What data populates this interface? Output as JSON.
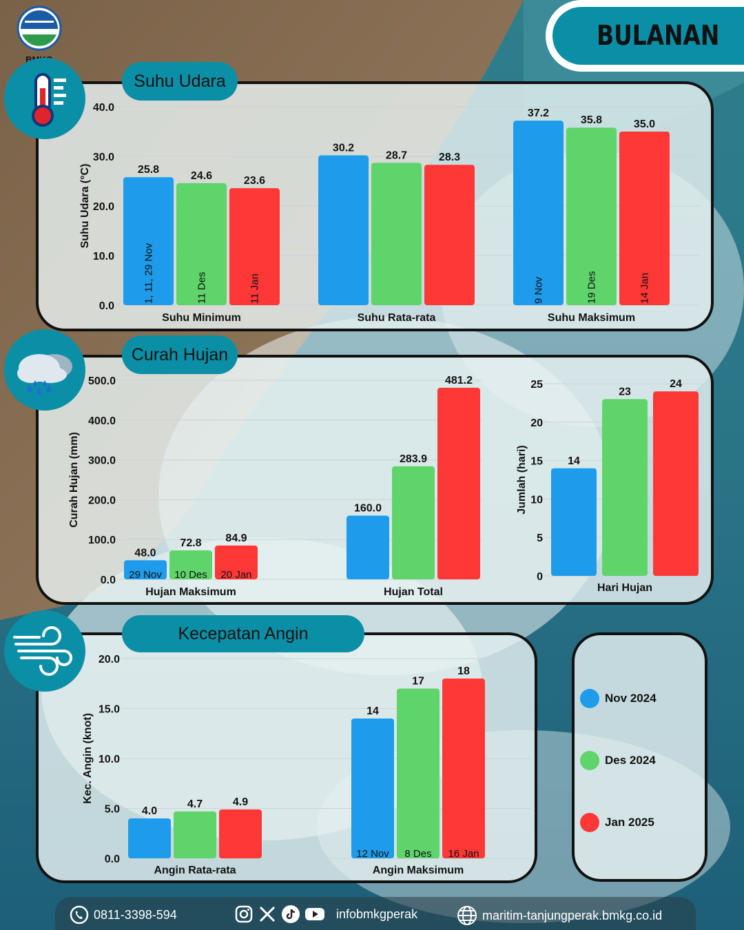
{
  "header": {
    "logo_text": "BMKG",
    "period": "BULANAN"
  },
  "legend": {
    "items": [
      {
        "label": "Nov 2024",
        "color": "#1e9ceb"
      },
      {
        "label": "Des 2024",
        "color": "#5fd46a"
      },
      {
        "label": "Jan 2025",
        "color": "#fe3737"
      }
    ]
  },
  "sections": {
    "suhu": {
      "title": "Suhu Udara",
      "icon": "thermometer-icon"
    },
    "hujan": {
      "title": "Curah Hujan",
      "icon": "rain-cloud-icon"
    },
    "angin": {
      "title": "Kecepatan Angin",
      "icon": "wind-icon"
    }
  },
  "chart_data": [
    {
      "id": "suhu",
      "type": "bar",
      "ylabel": "Suhu Udara (°C)",
      "ylim": [
        0,
        40
      ],
      "yticks": [
        "0.0",
        "10.0",
        "20.0",
        "30.0",
        "40.0"
      ],
      "categories": [
        "Suhu Minimum",
        "Suhu Rata-rata",
        "Suhu Maksimum"
      ],
      "series": [
        {
          "name": "Nov 2024",
          "values": [
            25.8,
            30.2,
            37.2
          ],
          "labels": [
            "25.8",
            "30.2",
            "37.2"
          ],
          "dates": [
            "1, 11, 29 Nov",
            "",
            "9 Nov"
          ]
        },
        {
          "name": "Des 2024",
          "values": [
            24.6,
            28.7,
            35.8
          ],
          "labels": [
            "24.6",
            "28.7",
            "35.8"
          ],
          "dates": [
            "11 Des",
            "",
            "19 Des"
          ]
        },
        {
          "name": "Jan 2025",
          "values": [
            23.6,
            28.3,
            35.0
          ],
          "labels": [
            "23.6",
            "28.3",
            "35.0"
          ],
          "dates": [
            "11 Jan",
            "",
            "14 Jan"
          ]
        }
      ]
    },
    {
      "id": "hujan",
      "type": "bar",
      "ylabel": "Curah Hujan (mm)",
      "ylim": [
        0,
        500
      ],
      "yticks": [
        "0.0",
        "100.0",
        "200.0",
        "300.0",
        "400.0",
        "500.0"
      ],
      "categories": [
        "Hujan Maksimum",
        "Hujan Total"
      ],
      "series": [
        {
          "name": "Nov 2024",
          "values": [
            48.0,
            160.0
          ],
          "labels": [
            "48.0",
            "160.0"
          ],
          "dates": [
            "29 Nov",
            ""
          ]
        },
        {
          "name": "Des 2024",
          "values": [
            72.8,
            283.9
          ],
          "labels": [
            "72.8",
            "283.9"
          ],
          "dates": [
            "10 Des",
            ""
          ]
        },
        {
          "name": "Jan 2025",
          "values": [
            84.9,
            481.2
          ],
          "labels": [
            "84.9",
            "481.2"
          ],
          "dates": [
            "20 Jan",
            ""
          ]
        }
      ]
    },
    {
      "id": "harihujan",
      "type": "bar",
      "ylabel": "Jumlah (hari)",
      "ylim": [
        0,
        25
      ],
      "yticks": [
        "0",
        "5",
        "10",
        "15",
        "20",
        "25"
      ],
      "categories": [
        "Hari Hujan"
      ],
      "series": [
        {
          "name": "Nov 2024",
          "values": [
            14
          ],
          "labels": [
            "14"
          ],
          "dates": [
            ""
          ]
        },
        {
          "name": "Des 2024",
          "values": [
            23
          ],
          "labels": [
            "23"
          ],
          "dates": [
            ""
          ]
        },
        {
          "name": "Jan 2025",
          "values": [
            24
          ],
          "labels": [
            "24"
          ],
          "dates": [
            ""
          ]
        }
      ]
    },
    {
      "id": "angin",
      "type": "bar",
      "ylabel": "Kec. Angin (knot)",
      "ylim": [
        0,
        20
      ],
      "yticks": [
        "0.0",
        "5.0",
        "10.0",
        "15.0",
        "20.0"
      ],
      "categories": [
        "Angin Rata-rata",
        "Angin Maksimum"
      ],
      "series": [
        {
          "name": "Nov 2024",
          "values": [
            4.0,
            14
          ],
          "labels": [
            "4.0",
            "14"
          ],
          "dates": [
            "",
            "12 Nov"
          ]
        },
        {
          "name": "Des 2024",
          "values": [
            4.7,
            17
          ],
          "labels": [
            "4.7",
            "17"
          ],
          "dates": [
            "",
            "8 Des"
          ]
        },
        {
          "name": "Jan 2025",
          "values": [
            4.9,
            18
          ],
          "labels": [
            "4.9",
            "18"
          ],
          "dates": [
            "",
            "16 Jan"
          ]
        }
      ]
    }
  ],
  "footer": {
    "phone": "0811-3398-594",
    "social": "infobmkgperak",
    "website": "maritim-tanjungperak.bmkg.co.id"
  }
}
